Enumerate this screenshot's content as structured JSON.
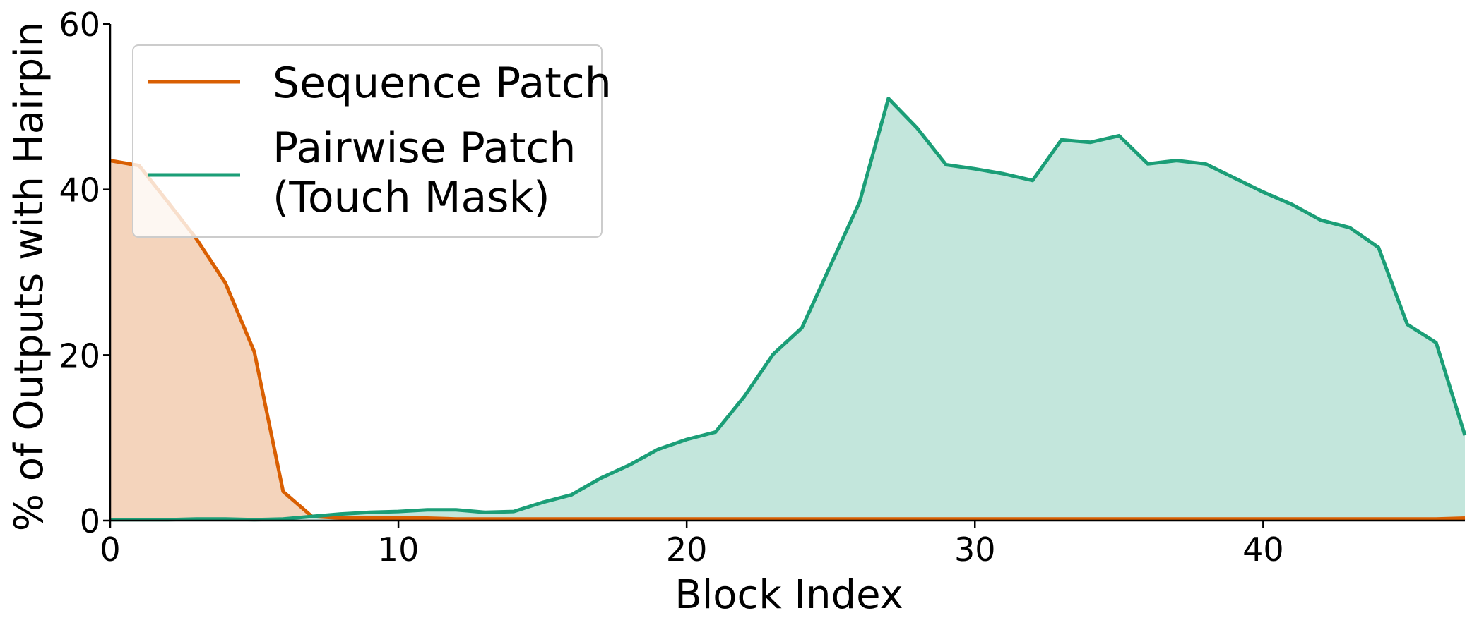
{
  "chart_data": {
    "type": "area",
    "xlabel": "Block Index",
    "ylabel": "% of Outputs with Hairpin",
    "xlim": [
      0,
      47
    ],
    "ylim": [
      0,
      60
    ],
    "xticks": [
      0,
      10,
      20,
      30,
      40
    ],
    "yticks": [
      0,
      20,
      40,
      60
    ],
    "legend_position": "upper-left",
    "grid": false,
    "x": [
      0,
      1,
      2,
      3,
      4,
      5,
      6,
      7,
      8,
      9,
      10,
      11,
      12,
      13,
      14,
      15,
      16,
      17,
      18,
      19,
      20,
      21,
      22,
      23,
      24,
      25,
      26,
      27,
      28,
      29,
      30,
      31,
      32,
      33,
      34,
      35,
      36,
      37,
      38,
      39,
      40,
      41,
      42,
      43,
      44,
      45,
      46,
      47
    ],
    "series": [
      {
        "name": "Sequence Patch",
        "color": "#d95f02",
        "fill_color": "#f4d4bc",
        "values": [
          43.5,
          42.9,
          38.5,
          34.0,
          28.7,
          20.4,
          3.5,
          0.5,
          0.3,
          0.3,
          0.3,
          0.3,
          0.2,
          0.2,
          0.2,
          0.2,
          0.2,
          0.2,
          0.2,
          0.2,
          0.2,
          0.2,
          0.2,
          0.2,
          0.2,
          0.2,
          0.2,
          0.2,
          0.2,
          0.2,
          0.2,
          0.2,
          0.2,
          0.2,
          0.2,
          0.2,
          0.2,
          0.2,
          0.2,
          0.2,
          0.2,
          0.2,
          0.2,
          0.2,
          0.2,
          0.2,
          0.2,
          0.3
        ]
      },
      {
        "name": "Pairwise Patch\n(Touch Mask)",
        "color": "#1b9e77",
        "fill_color": "#c3e6dc",
        "values": [
          0.1,
          0.1,
          0.1,
          0.2,
          0.2,
          0.1,
          0.2,
          0.5,
          0.8,
          1.0,
          1.1,
          1.3,
          1.3,
          1.0,
          1.1,
          2.2,
          3.1,
          5.1,
          6.7,
          8.6,
          9.8,
          10.7,
          15.0,
          20.1,
          23.3,
          30.9,
          38.5,
          51.0,
          47.4,
          43.0,
          42.5,
          41.9,
          41.1,
          46.0,
          45.7,
          46.5,
          43.1,
          43.5,
          43.1,
          41.4,
          39.7,
          38.2,
          36.3,
          35.4,
          33.0,
          23.7,
          21.5,
          10.3
        ]
      }
    ]
  }
}
